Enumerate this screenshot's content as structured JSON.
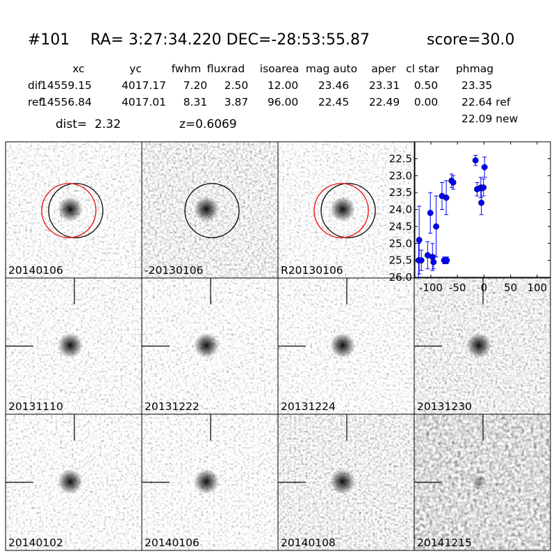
{
  "header": {
    "id": "#101",
    "coords": "RA= 3:27:34.220 DEC=-28:53:55.87",
    "score": "score=30.0"
  },
  "table": {
    "columns": [
      "xc",
      "yc",
      "fwhm",
      "fluxrad",
      "isoarea",
      "mag auto",
      "aper",
      "cl star",
      "phmag"
    ],
    "rows": [
      {
        "label": "dif",
        "cells": [
          "14559.15",
          "4017.17",
          "7.20",
          "2.50",
          "12.00",
          "23.46",
          "23.31",
          "0.50",
          "23.35"
        ]
      },
      {
        "label": "ref",
        "cells": [
          "14556.84",
          "4017.01",
          "8.31",
          "3.87",
          "96.00",
          "22.45",
          "22.49",
          "0.00",
          "22.64 ref"
        ]
      }
    ],
    "extra": "22.09 new"
  },
  "dist": "dist=  2.32",
  "redshift": "z=0.6069",
  "stamps": [
    {
      "label": "20140106"
    },
    {
      "label": "-20130106"
    },
    {
      "label": "R20130106"
    },
    {
      "label": "20131110"
    },
    {
      "label": "20131222"
    },
    {
      "label": "20131224"
    },
    {
      "label": "20131230"
    },
    {
      "label": "20140102"
    },
    {
      "label": "20140106",
      "label_color": "#ff0000"
    },
    {
      "label": "20140108"
    },
    {
      "label": "20141215"
    }
  ],
  "chart_data": {
    "type": "scatter",
    "color": "#0000ff",
    "x": [
      -123,
      -118,
      -122,
      -106,
      -101,
      -97,
      -95,
      -90,
      -79,
      -75,
      -71,
      -70,
      -61,
      -58,
      -16,
      -13,
      -6,
      -5,
      -1,
      1
    ],
    "values": [
      25.5,
      25.5,
      24.9,
      25.35,
      24.1,
      25.4,
      25.55,
      24.5,
      23.6,
      25.5,
      23.65,
      25.5,
      23.15,
      23.2,
      22.55,
      23.4,
      23.35,
      23.8,
      23.35,
      22.75
    ],
    "errors": [
      0.5,
      0.3,
      1.0,
      0.4,
      0.6,
      0.4,
      0.2,
      0.9,
      0.4,
      0.1,
      0.5,
      0.1,
      0.2,
      0.2,
      0.15,
      0.2,
      0.3,
      0.35,
      0.25,
      0.3
    ],
    "xlim": [
      -130,
      125
    ],
    "ylim": [
      26.0,
      22.0
    ],
    "xticks": [
      -100,
      -50,
      0,
      50,
      100
    ],
    "yticks": [
      22.5,
      {
        "value": 23,
        "label": "23.0"
      },
      23.5,
      {
        "value": 24,
        "label": "24.0"
      },
      24.5,
      {
        "value": 25,
        "label": "25.0"
      },
      25.5,
      {
        "value": 26,
        "label": "26.0"
      }
    ]
  }
}
